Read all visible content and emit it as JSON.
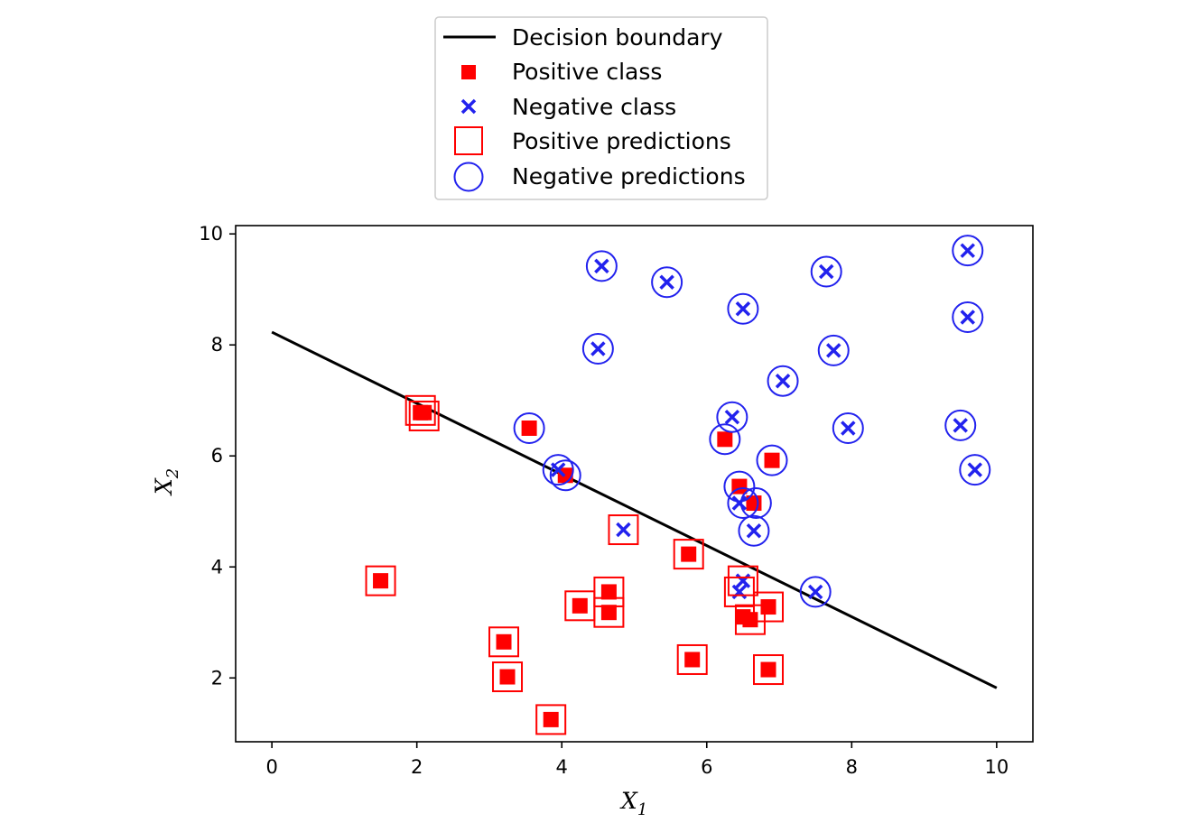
{
  "chart_data": {
    "type": "scatter",
    "xlabel": "X",
    "xlabel_sub": "1",
    "ylabel": "X",
    "ylabel_sub": "2",
    "xlim": [
      -0.5,
      10.5
    ],
    "ylim": [
      0.85,
      10.15
    ],
    "xticks": [
      0,
      2,
      4,
      6,
      8,
      10
    ],
    "yticks": [
      2,
      4,
      6,
      8,
      10
    ],
    "grid": false,
    "legend_position": "above plot, centered",
    "legend": [
      {
        "key": "line",
        "label": "Decision boundary"
      },
      {
        "key": "pos",
        "label": "Positive class"
      },
      {
        "key": "neg",
        "label": "Negative class"
      },
      {
        "key": "pospred",
        "label": "Positive predictions"
      },
      {
        "key": "negpred",
        "label": "Negative predictions"
      }
    ],
    "colors": {
      "positive": "#ff0000",
      "negative": "#2222ee",
      "boundary": "#000000"
    },
    "decision_boundary": {
      "x": [
        0,
        10
      ],
      "y": [
        8.23,
        1.82
      ]
    },
    "positive_class": [
      [
        1.5,
        3.75
      ],
      [
        2.05,
        6.78
      ],
      [
        2.1,
        6.78
      ],
      [
        3.2,
        2.65
      ],
      [
        3.25,
        2.02
      ],
      [
        3.55,
        6.5
      ],
      [
        3.85,
        1.25
      ],
      [
        4.05,
        5.65
      ],
      [
        4.25,
        3.3
      ],
      [
        4.65,
        3.55
      ],
      [
        4.65,
        3.18
      ],
      [
        5.75,
        4.23
      ],
      [
        5.8,
        2.33
      ],
      [
        6.25,
        6.3
      ],
      [
        6.45,
        5.45
      ],
      [
        6.5,
        3.1
      ],
      [
        6.6,
        3.05
      ],
      [
        6.65,
        5.15
      ],
      [
        6.85,
        3.28
      ],
      [
        6.85,
        2.15
      ],
      [
        6.9,
        5.92
      ]
    ],
    "negative_class": [
      [
        3.95,
        5.75
      ],
      [
        4.5,
        7.93
      ],
      [
        4.55,
        9.42
      ],
      [
        4.85,
        4.67
      ],
      [
        5.45,
        9.13
      ],
      [
        6.35,
        6.7
      ],
      [
        6.45,
        5.15
      ],
      [
        6.45,
        3.55
      ],
      [
        6.5,
        8.65
      ],
      [
        6.5,
        3.75
      ],
      [
        6.65,
        4.65
      ],
      [
        7.05,
        7.35
      ],
      [
        7.5,
        3.55
      ],
      [
        7.65,
        9.32
      ],
      [
        7.75,
        7.9
      ],
      [
        7.95,
        6.5
      ],
      [
        9.5,
        6.55
      ],
      [
        9.6,
        8.5
      ],
      [
        9.6,
        9.7
      ],
      [
        9.7,
        5.75
      ]
    ],
    "positive_predictions": [
      [
        1.5,
        3.75
      ],
      [
        2.05,
        6.82
      ],
      [
        2.1,
        6.72
      ],
      [
        3.2,
        2.65
      ],
      [
        3.25,
        2.02
      ],
      [
        3.85,
        1.25
      ],
      [
        4.25,
        3.3
      ],
      [
        4.65,
        3.55
      ],
      [
        4.65,
        3.18
      ],
      [
        4.85,
        4.67
      ],
      [
        5.75,
        4.23
      ],
      [
        5.8,
        2.33
      ],
      [
        6.45,
        3.55
      ],
      [
        6.5,
        3.75
      ],
      [
        6.6,
        3.05
      ],
      [
        6.85,
        3.28
      ],
      [
        6.85,
        2.15
      ]
    ],
    "negative_predictions": [
      [
        3.55,
        6.5
      ],
      [
        3.95,
        5.75
      ],
      [
        4.05,
        5.65
      ],
      [
        4.5,
        7.93
      ],
      [
        4.55,
        9.42
      ],
      [
        5.45,
        9.13
      ],
      [
        6.25,
        6.3
      ],
      [
        6.35,
        6.7
      ],
      [
        6.45,
        5.45
      ],
      [
        6.5,
        5.15
      ],
      [
        6.5,
        8.65
      ],
      [
        6.65,
        4.65
      ],
      [
        6.68,
        5.15
      ],
      [
        6.9,
        5.92
      ],
      [
        7.05,
        7.35
      ],
      [
        7.5,
        3.55
      ],
      [
        7.65,
        9.32
      ],
      [
        7.75,
        7.9
      ],
      [
        7.95,
        6.5
      ],
      [
        9.5,
        6.55
      ],
      [
        9.6,
        8.5
      ],
      [
        9.6,
        9.7
      ],
      [
        9.7,
        5.75
      ]
    ]
  }
}
